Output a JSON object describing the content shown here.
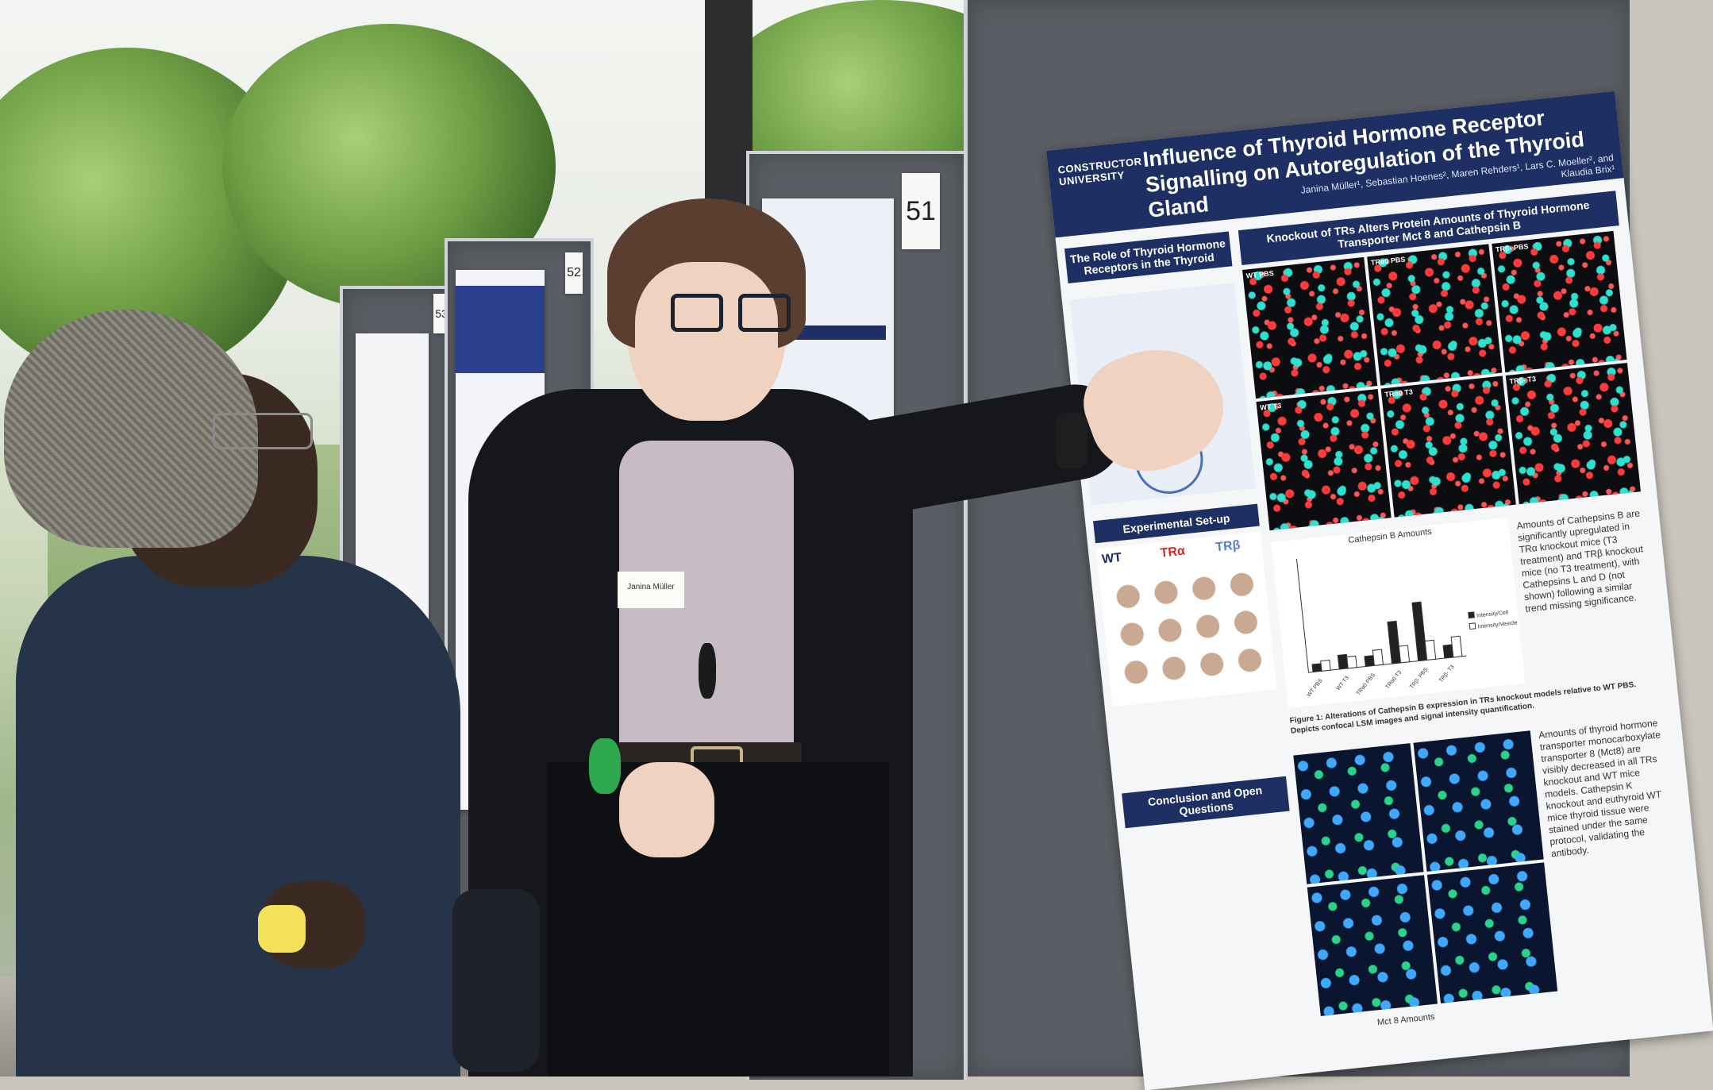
{
  "scene": {
    "description_colors": {
      "board": "#5a5e64",
      "poster_header": "#1d2f63",
      "foliage": "#6f9f45"
    }
  },
  "poster_numbers": {
    "main": "51",
    "middle": "52",
    "left": "53"
  },
  "main_poster": {
    "logo": "CONSTRUCTOR UNIVERSITY",
    "title": "Influence of Thyroid Hormone Receptor Signalling on Autoregulation of the Thyroid Gland",
    "authors": "Janina Müller¹, Sebastian Hoenes², Maren Rehders¹, Lars C. Moeller², and Klaudia Brix¹",
    "sections": {
      "role": "The Role of Thyroid Hormone Receptors in the Thyroid",
      "knockout": "Knockout of TRs Alters Protein Amounts of Thyroid Hormone Transporter Mct 8 and Cathepsin B",
      "experimental": "Experimental Set-up",
      "conclusion": "Conclusion and Open Questions"
    },
    "groups": {
      "wt": "WT",
      "tra": "TRα",
      "trb": "TRβ"
    },
    "panel_labels": [
      "WT PBS",
      "TRα0 PBS",
      "TRβ- PBS",
      "WT T3",
      "TRα0 T3",
      "TRβ- T3"
    ],
    "chart_title": "Cathepsin B Amounts",
    "legend": [
      "Intensity/Cell",
      "Intensity/Vesicle"
    ],
    "side_text_1": "Amounts of Cathepsins B are significantly upregulated in TRα knockout mice (T3 treatment) and TRβ knockout mice (no T3 treatment), with Cathepsins L and D (not shown) following a similar trend missing significance.",
    "side_text_2": "Amounts of thyroid hormone transporter monocarboxylate transporter 8 (Mct8) are visibly decreased in all TRs knockout and WT mice models. Cathepsin K knockout and euthyroid WT mice thyroid tissue were stained under the same protocol, validating the antibody.",
    "figure_caption": "Figure 1: Alterations of Cathepsin B expression in TRs knockout models relative to WT PBS. Depicts confocal LSM images and signal intensity quantification.",
    "mct8_label": "Mct 8 Amounts"
  },
  "chart_data": {
    "type": "bar",
    "title": "Cathepsin B Amounts",
    "categories": [
      "WT PBS",
      "WT T3",
      "TRα0 PBS",
      "TRα0 T3",
      "TRβ- PBS",
      "TRβ- T3"
    ],
    "series": [
      {
        "name": "Intensity/Cell",
        "values": [
          60,
          110,
          80,
          330,
          460,
          100
        ]
      },
      {
        "name": "Intensity/Vesicle",
        "values": [
          80,
          90,
          120,
          130,
          150,
          160
        ]
      }
    ],
    "ylim": [
      0,
      900
    ]
  },
  "name_badge": "Janina Müller"
}
